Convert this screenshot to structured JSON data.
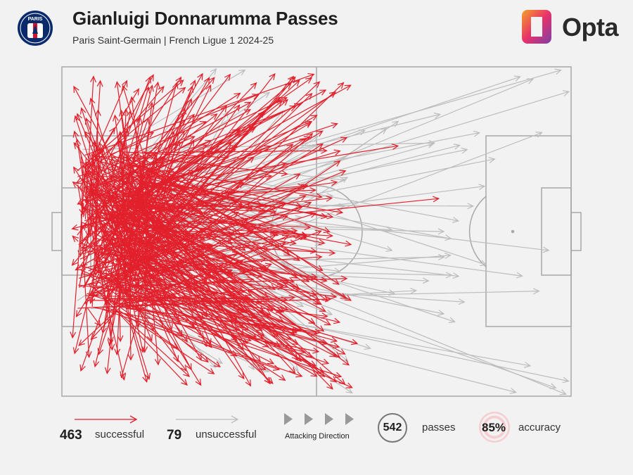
{
  "header": {
    "title": "Gianluigi Donnarumma Passes",
    "subtitle": "Paris Saint-Germain | French Ligue 1 2024-25",
    "club_crest_text": "PARIS",
    "brand": "Opta"
  },
  "colors": {
    "successful": "#e2202c",
    "unsuccessful": "#bdbdbd",
    "pitch_line": "#a8a8a8",
    "background": "#f2f2f2"
  },
  "legend": {
    "successful_count": "463",
    "successful_label": "successful",
    "unsuccessful_count": "79",
    "unsuccessful_label": "unsuccessful",
    "direction_label": "Attacking Direction",
    "passes_count": "542",
    "passes_label": "passes",
    "accuracy_value": "85%",
    "accuracy_label": "accuracy"
  },
  "chart_data": {
    "type": "pass-map",
    "total_passes": 542,
    "successful": 463,
    "unsuccessful": 79,
    "accuracy_pct": 85,
    "attacking_direction": "left-to-right",
    "note_units": "pitch coordinates 0-100 (x along length, y across width)",
    "sample_passes": {
      "successful": [
        [
          10,
          40,
          48,
          52
        ],
        [
          8,
          35,
          35,
          8
        ],
        [
          12,
          60,
          40,
          92
        ],
        [
          6,
          50,
          30,
          50
        ],
        [
          10,
          45,
          54,
          35
        ],
        [
          9,
          55,
          47,
          80
        ],
        [
          7,
          30,
          20,
          6
        ],
        [
          8,
          70,
          25,
          94
        ],
        [
          11,
          50,
          74,
          40
        ],
        [
          10,
          38,
          66,
          24
        ],
        [
          9,
          62,
          58,
          84
        ],
        [
          12,
          48,
          45,
          5
        ],
        [
          8,
          52,
          52,
          65
        ],
        [
          10,
          42,
          42,
          44
        ],
        [
          7,
          58,
          18,
          80
        ],
        [
          11,
          35,
          37,
          13
        ]
      ],
      "unsuccessful": [
        [
          10,
          40,
          98,
          1
        ],
        [
          9,
          45,
          90,
          3
        ],
        [
          12,
          50,
          85,
          28
        ],
        [
          10,
          55,
          75,
          75
        ],
        [
          8,
          42,
          82,
          20
        ],
        [
          11,
          60,
          72,
          65
        ],
        [
          9,
          48,
          75,
          50
        ],
        [
          10,
          52,
          57,
          99
        ]
      ]
    }
  }
}
